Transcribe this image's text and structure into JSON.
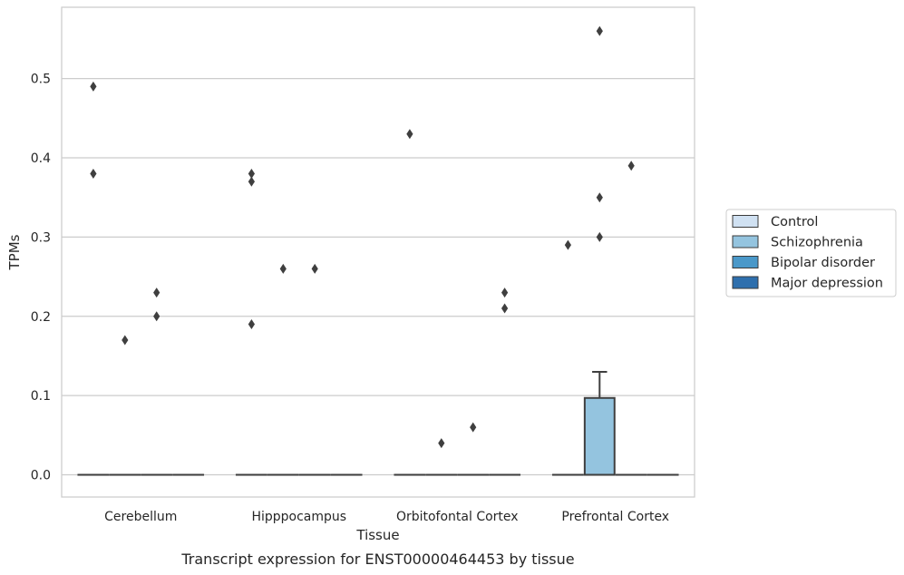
{
  "chart_data": {
    "type": "box",
    "caption": "Transcript expression for ENST00000464453 by tissue",
    "xlabel": "Tissue",
    "ylabel": "TPMs",
    "ylim": [
      -0.028,
      0.59
    ],
    "yticks": [
      "0.0",
      "0.1",
      "0.2",
      "0.3",
      "0.4",
      "0.5"
    ],
    "grid": true,
    "legend_position": "right",
    "categories": [
      "Cerebellum",
      "Hipppocampus",
      "Orbitofontal Cortex",
      "Prefrontal Cortex"
    ],
    "series": [
      {
        "name": "Control",
        "color": "#d0e1f2"
      },
      {
        "name": "Schizophrenia",
        "color": "#94c4df"
      },
      {
        "name": "Bipolar disorder",
        "color": "#4a98c9"
      },
      {
        "name": "Major depression",
        "color": "#2e6fad"
      }
    ],
    "boxes": [
      {
        "category": 0,
        "series": 0,
        "q1": 0,
        "median": 0,
        "q3": 0,
        "whisker_low": 0,
        "whisker_high": 0,
        "outliers": [
          0.38,
          0.49
        ]
      },
      {
        "category": 0,
        "series": 1,
        "q1": 0,
        "median": 0,
        "q3": 0,
        "whisker_low": 0,
        "whisker_high": 0,
        "outliers": [
          0.17
        ]
      },
      {
        "category": 0,
        "series": 2,
        "q1": 0,
        "median": 0,
        "q3": 0,
        "whisker_low": 0,
        "whisker_high": 0,
        "outliers": [
          0.2,
          0.23
        ]
      },
      {
        "category": 0,
        "series": 3,
        "q1": 0,
        "median": 0,
        "q3": 0,
        "whisker_low": 0,
        "whisker_high": 0,
        "outliers": []
      },
      {
        "category": 1,
        "series": 0,
        "q1": 0,
        "median": 0,
        "q3": 0,
        "whisker_low": 0,
        "whisker_high": 0,
        "outliers": [
          0.19,
          0.37,
          0.38
        ]
      },
      {
        "category": 1,
        "series": 1,
        "q1": 0,
        "median": 0,
        "q3": 0,
        "whisker_low": 0,
        "whisker_high": 0,
        "outliers": [
          0.26
        ]
      },
      {
        "category": 1,
        "series": 2,
        "q1": 0,
        "median": 0,
        "q3": 0,
        "whisker_low": 0,
        "whisker_high": 0,
        "outliers": [
          0.26
        ]
      },
      {
        "category": 1,
        "series": 3,
        "q1": 0,
        "median": 0,
        "q3": 0,
        "whisker_low": 0,
        "whisker_high": 0,
        "outliers": []
      },
      {
        "category": 2,
        "series": 0,
        "q1": 0,
        "median": 0,
        "q3": 0,
        "whisker_low": 0,
        "whisker_high": 0,
        "outliers": [
          0.43
        ]
      },
      {
        "category": 2,
        "series": 1,
        "q1": 0,
        "median": 0,
        "q3": 0,
        "whisker_low": 0,
        "whisker_high": 0,
        "outliers": [
          0.04
        ]
      },
      {
        "category": 2,
        "series": 2,
        "q1": 0,
        "median": 0,
        "q3": 0,
        "whisker_low": 0,
        "whisker_high": 0,
        "outliers": [
          0.06
        ]
      },
      {
        "category": 2,
        "series": 3,
        "q1": 0,
        "median": 0,
        "q3": 0,
        "whisker_low": 0,
        "whisker_high": 0,
        "outliers": [
          0.21,
          0.23
        ]
      },
      {
        "category": 3,
        "series": 0,
        "q1": 0,
        "median": 0,
        "q3": 0,
        "whisker_low": 0,
        "whisker_high": 0,
        "outliers": [
          0.29
        ]
      },
      {
        "category": 3,
        "series": 1,
        "q1": 0,
        "median": 0,
        "q3": 0.097,
        "whisker_low": 0,
        "whisker_high": 0.13,
        "outliers": [
          0.3,
          0.35,
          0.56
        ]
      },
      {
        "category": 3,
        "series": 2,
        "q1": 0,
        "median": 0,
        "q3": 0,
        "whisker_low": 0,
        "whisker_high": 0,
        "outliers": [
          0.39
        ]
      },
      {
        "category": 3,
        "series": 3,
        "q1": 0,
        "median": 0,
        "q3": 0,
        "whisker_low": 0,
        "whisker_high": 0,
        "outliers": []
      }
    ]
  }
}
